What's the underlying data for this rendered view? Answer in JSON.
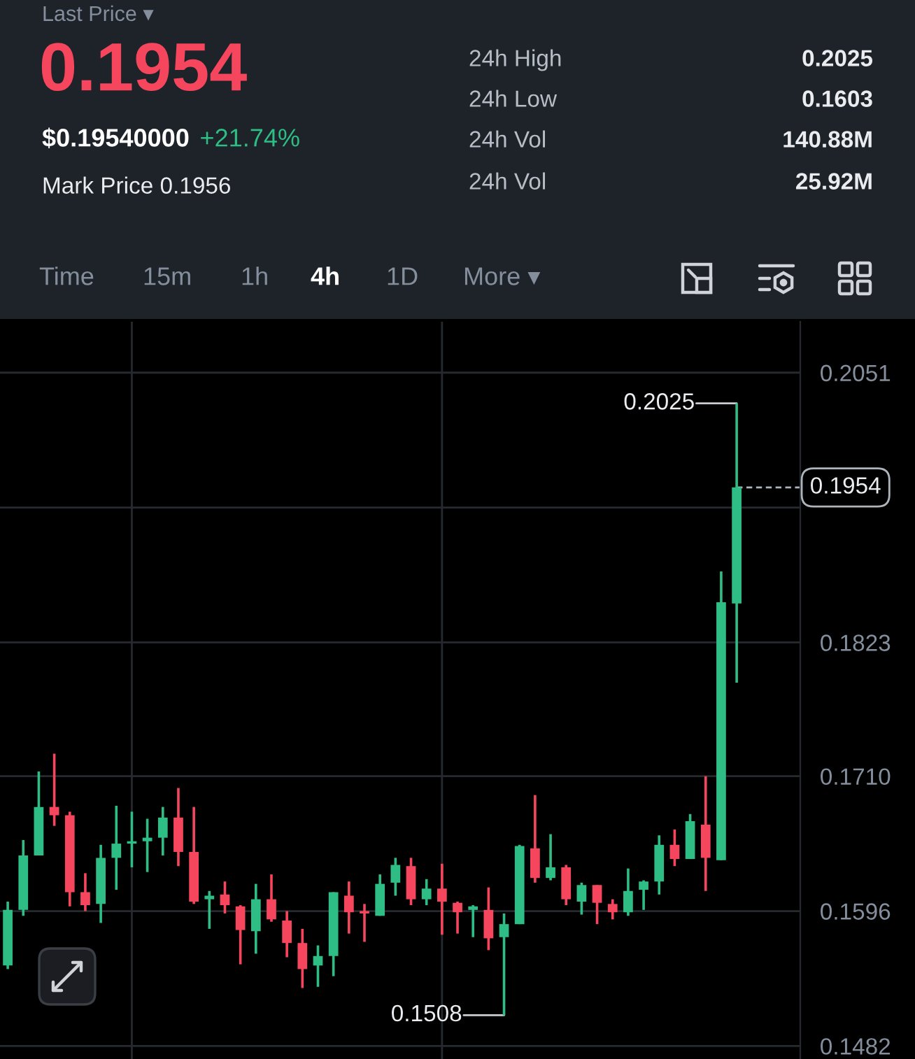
{
  "chart_data": [
    {
      "type": "other",
      "annotations": [
        "Last Price ▾",
        "0.1954",
        "$0.19540000",
        "+21.74%",
        "Mark Price 0.1956",
        "24h High",
        "0.2025",
        "24h Low",
        "0.1603",
        "24h Vol",
        "140.88M",
        "24h Vol",
        "25.92M",
        "Time",
        "15m",
        "1h",
        "4h",
        "1D",
        "More ▾"
      ]
    },
    {
      "type": "candlestick",
      "categories": [
        null,
        null,
        null,
        null,
        null,
        null,
        null,
        null,
        null,
        null,
        null,
        null,
        null,
        null,
        null,
        null,
        null,
        null,
        null,
        null,
        null,
        null,
        null,
        null,
        null,
        null,
        null,
        null,
        null,
        null,
        null,
        null,
        null,
        null,
        null,
        null,
        null,
        null,
        null,
        null,
        null,
        null,
        null,
        null,
        null,
        null,
        null,
        null
      ],
      "ohlc": [
        [
          0.155,
          0.1604,
          0.1547,
          0.1597
        ],
        [
          0.1597,
          0.1656,
          0.1592,
          0.1643
        ],
        [
          0.1643,
          0.1714,
          0.1643,
          0.1684
        ],
        [
          0.1684,
          0.1729,
          0.1668,
          0.1677
        ],
        [
          0.1677,
          0.168,
          0.16,
          0.1612
        ],
        [
          0.1612,
          0.1628,
          0.1596,
          0.1601
        ],
        [
          0.1602,
          0.1652,
          0.1586,
          0.1641
        ],
        [
          0.1641,
          0.1685,
          0.1614,
          0.1653
        ],
        [
          0.1653,
          0.168,
          0.1633,
          0.1655
        ],
        [
          0.1655,
          0.1674,
          0.1629,
          0.1658
        ],
        [
          0.1658,
          0.1684,
          0.1643,
          0.1675
        ],
        [
          0.1675,
          0.17,
          0.1634,
          0.1646
        ],
        [
          0.1646,
          0.1684,
          0.1602,
          0.1604
        ],
        [
          0.1606,
          0.1613,
          0.1581,
          0.1609
        ],
        [
          0.161,
          0.1621,
          0.1594,
          0.1601
        ],
        [
          0.16,
          0.1601,
          0.1551,
          0.158
        ],
        [
          0.1579,
          0.1619,
          0.156,
          0.1606
        ],
        [
          0.1606,
          0.1627,
          0.1587,
          0.1589
        ],
        [
          0.1588,
          0.1596,
          0.1557,
          0.1569
        ],
        [
          0.1569,
          0.1581,
          0.1531,
          0.1547
        ],
        [
          0.155,
          0.1567,
          0.1532,
          0.1558
        ],
        [
          0.1558,
          0.1612,
          0.1541,
          0.1612
        ],
        [
          0.1609,
          0.1621,
          0.1577,
          0.1595
        ],
        [
          0.1596,
          0.1602,
          0.157,
          0.1594
        ],
        [
          0.1592,
          0.1627,
          0.1592,
          0.1619
        ],
        [
          0.162,
          0.1641,
          0.1609,
          0.1635
        ],
        [
          0.1634,
          0.1641,
          0.1601,
          0.1606
        ],
        [
          0.1606,
          0.1623,
          0.1601,
          0.1615
        ],
        [
          0.1615,
          0.1636,
          0.1576,
          0.1604
        ],
        [
          0.1603,
          0.1604,
          0.1577,
          0.1595
        ],
        [
          0.1597,
          0.1601,
          0.1574,
          0.16
        ],
        [
          0.1597,
          0.1616,
          0.1563,
          0.1573
        ],
        [
          0.1574,
          0.1594,
          0.1508,
          0.1585
        ],
        [
          0.1585,
          0.1652,
          0.1585,
          0.1651
        ],
        [
          0.1649,
          0.1694,
          0.162,
          0.1624
        ],
        [
          0.1624,
          0.1661,
          0.1622,
          0.1633
        ],
        [
          0.1633,
          0.1635,
          0.1601,
          0.1606
        ],
        [
          0.1604,
          0.162,
          0.1593,
          0.1618
        ],
        [
          0.1618,
          0.1618,
          0.1585,
          0.1603
        ],
        [
          0.1602,
          0.1606,
          0.1589,
          0.1595
        ],
        [
          0.1595,
          0.1632,
          0.1592,
          0.1613
        ],
        [
          0.1614,
          0.1622,
          0.1597,
          0.1621
        ],
        [
          0.1621,
          0.166,
          0.161,
          0.1652
        ],
        [
          0.1652,
          0.1665,
          0.1634,
          0.164
        ],
        [
          0.164,
          0.1678,
          0.164,
          0.1672
        ],
        [
          0.1669,
          0.171,
          0.1613,
          0.1641
        ],
        [
          0.1639,
          0.1883,
          0.1639,
          0.1857
        ],
        [
          0.1856,
          0.2025,
          0.1789,
          0.1954
        ]
      ],
      "colors": [
        "#2ebd85",
        "#2ebd85",
        "#2ebd85",
        "#f6465d",
        "#f6465d",
        "#f6465d",
        "#2ebd85",
        "#2ebd85",
        "#2ebd85",
        "#2ebd85",
        "#2ebd85",
        "#f6465d",
        "#f6465d",
        "#2ebd85",
        "#f6465d",
        "#f6465d",
        "#2ebd85",
        "#f6465d",
        "#f6465d",
        "#f6465d",
        "#2ebd85",
        "#2ebd85",
        "#f6465d",
        "#f6465d",
        "#2ebd85",
        "#2ebd85",
        "#f6465d",
        "#2ebd85",
        "#f6465d",
        "#f6465d",
        "#2ebd85",
        "#f6465d",
        "#2ebd85",
        "#2ebd85",
        "#f6465d",
        "#2ebd85",
        "#f6465d",
        "#2ebd85",
        "#f6465d",
        "#f6465d",
        "#2ebd85",
        "#2ebd85",
        "#2ebd85",
        "#f6465d",
        "#2ebd85",
        "#f6465d",
        "#2ebd85",
        "#2ebd85"
      ],
      "ylim": [
        0.1471,
        0.2094
      ],
      "yticks": [
        0.1482,
        0.1596,
        {
          "value": 0.171,
          "label": "0.1710"
        },
        0.1823,
        {
          "value": 0.1937,
          "label": null
        },
        0.2051
      ],
      "grid": "y",
      "tick_labels": "y",
      "ref_lines": [
        {
          "axis": "y",
          "value": 0.1954,
          "label": "0.1954",
          "line_style": "dashed"
        }
      ],
      "annotations": [
        "0.2025",
        "0.1508"
      ]
    }
  ]
}
